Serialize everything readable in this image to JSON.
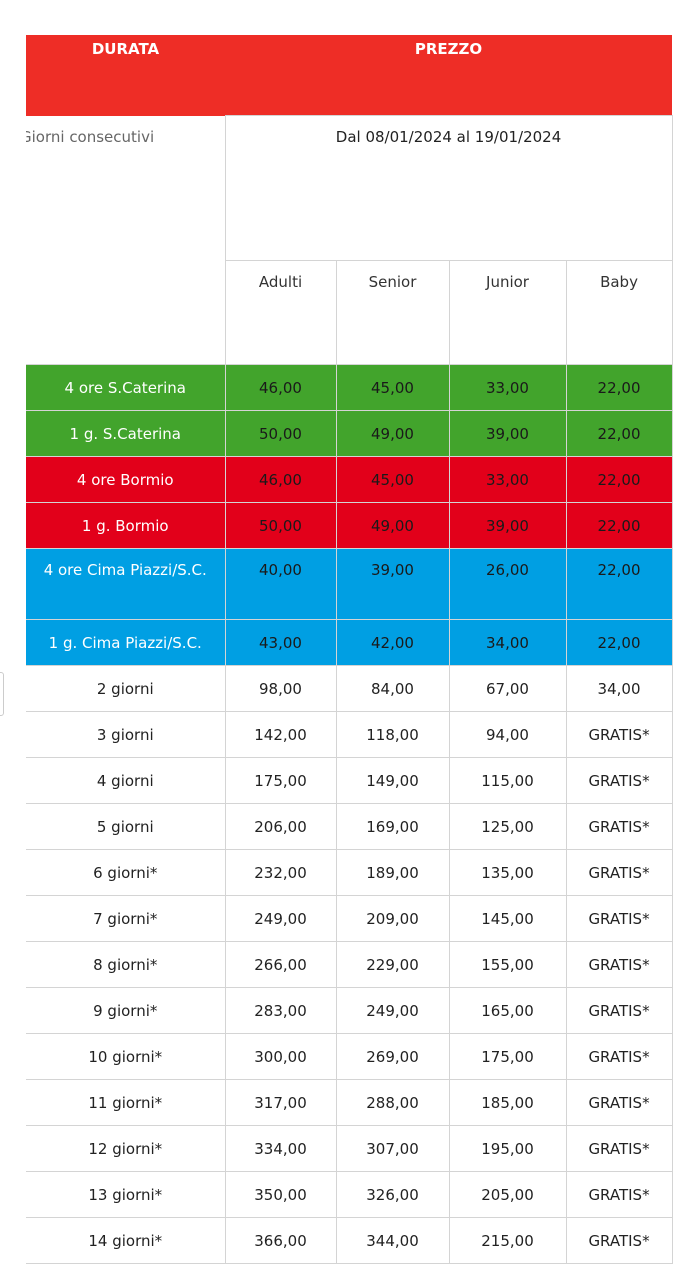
{
  "header": {
    "durata": "DURATA",
    "prezzo": "PREZZO"
  },
  "period": "Dal 08/01/2024 al 19/01/2024",
  "duration_label": "Giorni consecutivi",
  "columns": [
    "Adulti",
    "Senior",
    "Junior",
    "Baby"
  ],
  "colors": {
    "header": "#ee2d26",
    "green": "#42a42c",
    "red": "#e2001a",
    "blue": "#009fe3"
  },
  "rows": [
    {
      "label": "4 ore S.Caterina",
      "values": [
        "46,00",
        "45,00",
        "33,00",
        "22,00"
      ],
      "group": "green"
    },
    {
      "label": "1 g. S.Caterina",
      "values": [
        "50,00",
        "49,00",
        "39,00",
        "22,00"
      ],
      "group": "green"
    },
    {
      "label": "4 ore Bormio",
      "values": [
        "46,00",
        "45,00",
        "33,00",
        "22,00"
      ],
      "group": "red"
    },
    {
      "label": "1 g. Bormio",
      "values": [
        "50,00",
        "49,00",
        "39,00",
        "22,00"
      ],
      "group": "red"
    },
    {
      "label": "4 ore Cima Piazzi/S.C.",
      "values": [
        "40,00",
        "39,00",
        "26,00",
        "22,00"
      ],
      "group": "blue"
    },
    {
      "label": "1 g. Cima Piazzi/S.C.",
      "values": [
        "43,00",
        "42,00",
        "34,00",
        "22,00"
      ],
      "group": "blue"
    },
    {
      "label": "2 giorni",
      "values": [
        "98,00",
        "84,00",
        "67,00",
        "34,00"
      ]
    },
    {
      "label": "3 giorni",
      "values": [
        "142,00",
        "118,00",
        "94,00",
        "GRATIS*"
      ]
    },
    {
      "label": "4 giorni",
      "values": [
        "175,00",
        "149,00",
        "115,00",
        "GRATIS*"
      ]
    },
    {
      "label": "5 giorni",
      "values": [
        "206,00",
        "169,00",
        "125,00",
        "GRATIS*"
      ]
    },
    {
      "label": "6 giorni*",
      "values": [
        "232,00",
        "189,00",
        "135,00",
        "GRATIS*"
      ]
    },
    {
      "label": "7 giorni*",
      "values": [
        "249,00",
        "209,00",
        "145,00",
        "GRATIS*"
      ]
    },
    {
      "label": "8 giorni*",
      "values": [
        "266,00",
        "229,00",
        "155,00",
        "GRATIS*"
      ]
    },
    {
      "label": "9 giorni*",
      "values": [
        "283,00",
        "249,00",
        "165,00",
        "GRATIS*"
      ]
    },
    {
      "label": "10 giorni*",
      "values": [
        "300,00",
        "269,00",
        "175,00",
        "GRATIS*"
      ]
    },
    {
      "label": "11 giorni*",
      "values": [
        "317,00",
        "288,00",
        "185,00",
        "GRATIS*"
      ]
    },
    {
      "label": "12 giorni*",
      "values": [
        "334,00",
        "307,00",
        "195,00",
        "GRATIS*"
      ]
    },
    {
      "label": "13 giorni*",
      "values": [
        "350,00",
        "326,00",
        "205,00",
        "GRATIS*"
      ]
    },
    {
      "label": "14 giorni*",
      "values": [
        "366,00",
        "344,00",
        "215,00",
        "GRATIS*"
      ]
    }
  ]
}
